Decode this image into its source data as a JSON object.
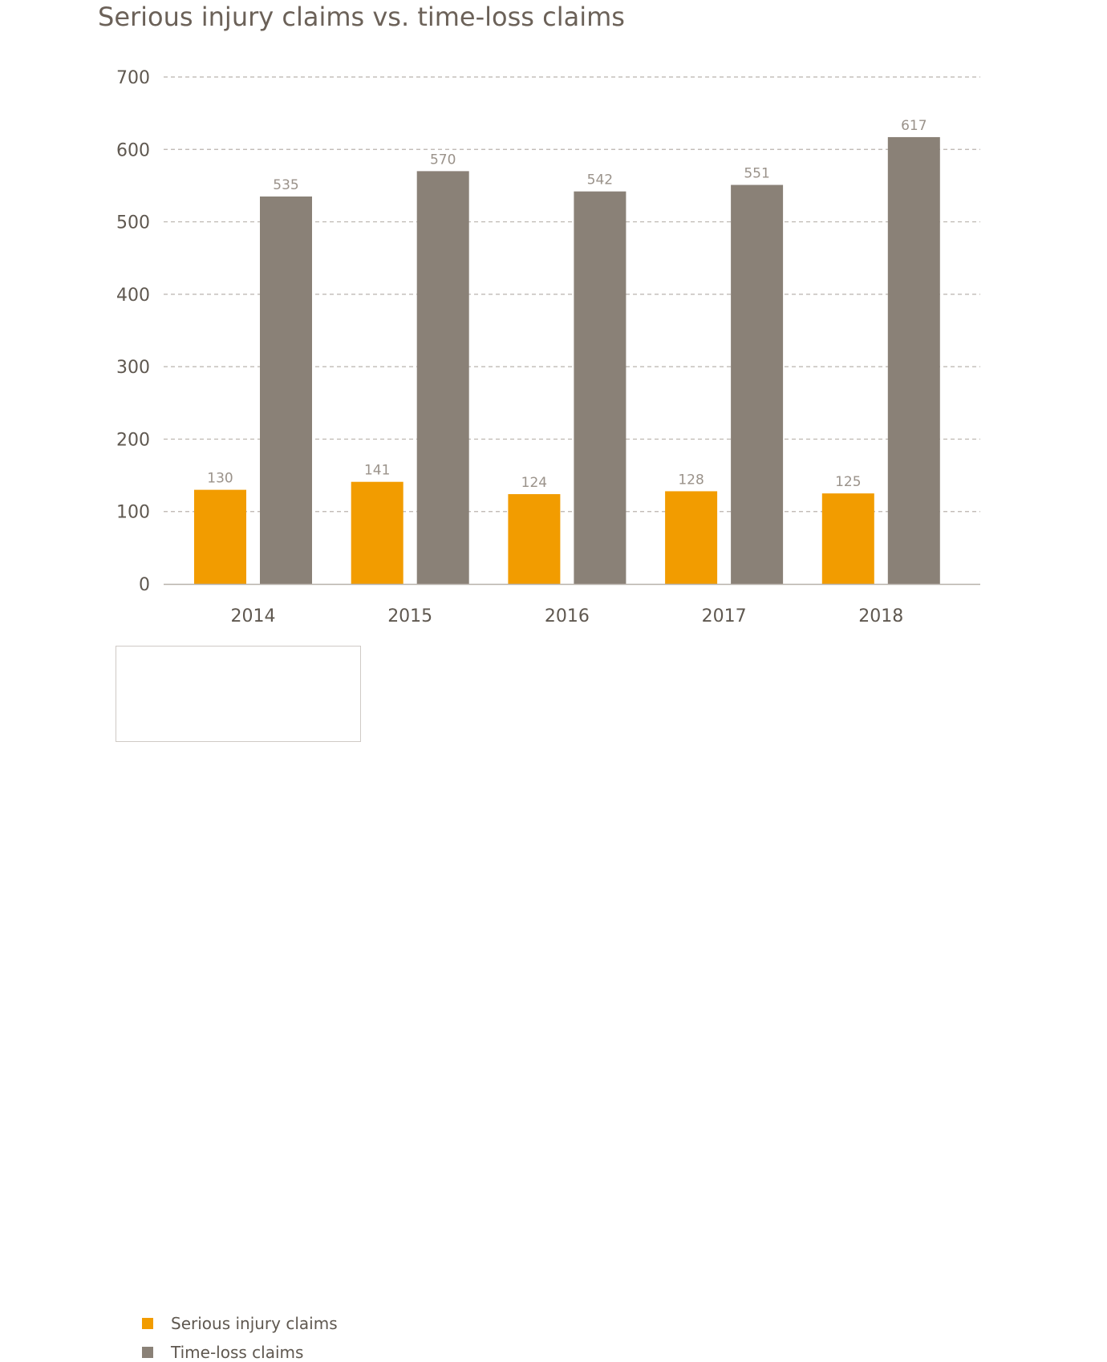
{
  "chart_data": {
    "type": "bar",
    "title": "Serious injury claims vs. time-loss claims",
    "categories": [
      "2014",
      "2015",
      "2016",
      "2017",
      "2018"
    ],
    "series": [
      {
        "name": "Serious injury claims",
        "color": "#f29c00",
        "values": [
          130,
          141,
          124,
          128,
          125
        ]
      },
      {
        "name": "Time-loss claims",
        "color": "#8a8177",
        "values": [
          535,
          570,
          542,
          551,
          617
        ]
      }
    ],
    "ylim": [
      0,
      700
    ],
    "yticks": [
      0,
      100,
      200,
      300,
      400,
      500,
      600,
      700
    ],
    "grid": true,
    "legend_position": "bottom-left"
  }
}
